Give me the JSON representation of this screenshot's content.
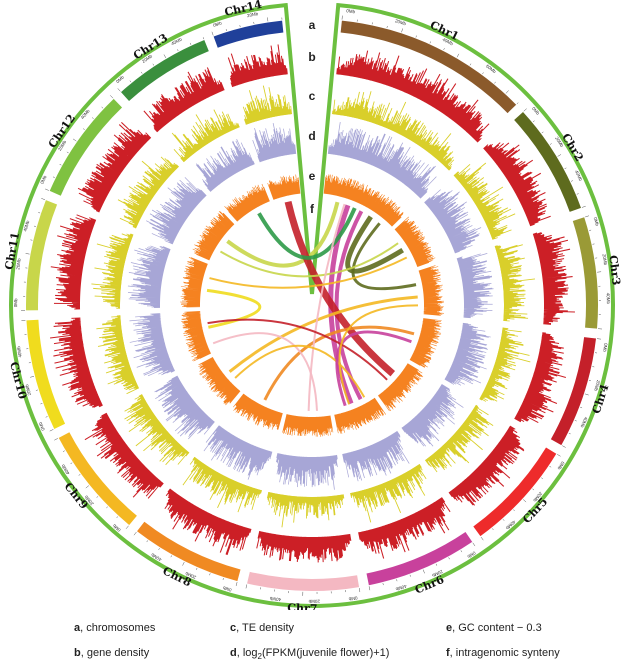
{
  "figure": {
    "colors": {
      "frame": "#6cbf3f",
      "gene_density": "#cc1f26",
      "te_density": "#d9cf2a",
      "expression": "#a7a6d6",
      "gc_content": "#f58220"
    },
    "chromosomes": [
      {
        "name": "Chr1",
        "length": 14,
        "color": "#8b5a2b",
        "ticks": [
          "0Mb",
          "20Mb",
          "40Mb",
          "60Mb"
        ]
      },
      {
        "name": "Chr2",
        "length": 8,
        "color": "#5e6b1e",
        "ticks": [
          "0Mb",
          "20Mb",
          "40Mb"
        ]
      },
      {
        "name": "Chr3",
        "length": 8,
        "color": "#9a9a36",
        "ticks": [
          "0Mb",
          "20Mb",
          "40Mb"
        ]
      },
      {
        "name": "Chr4",
        "length": 8,
        "color": "#c4202a",
        "ticks": [
          "0Mb",
          "20Mb",
          "40Mb"
        ]
      },
      {
        "name": "Chr5",
        "length": 8,
        "color": "#ee2b2b",
        "ticks": [
          "0Mb",
          "20Mb",
          "40Mb"
        ]
      },
      {
        "name": "Chr6",
        "length": 8,
        "color": "#c8419c",
        "ticks": [
          "0Mb",
          "20Mb",
          "40Mb"
        ]
      },
      {
        "name": "Chr7",
        "length": 8,
        "color": "#f4b8c2",
        "ticks": [
          "0Mb",
          "20Mb",
          "40Mb"
        ]
      },
      {
        "name": "Chr8",
        "length": 8,
        "color": "#f08a22",
        "ticks": [
          "0Mb",
          "20Mb",
          "40Mb"
        ]
      },
      {
        "name": "Chr9",
        "length": 8,
        "color": "#f4b822",
        "ticks": [
          "0Mb",
          "20Mb",
          "40Mb"
        ]
      },
      {
        "name": "Chr10",
        "length": 8,
        "color": "#f0dc1e",
        "ticks": [
          "0Mb",
          "20Mb",
          "40Mb"
        ]
      },
      {
        "name": "Chr11",
        "length": 8,
        "color": "#c8d64a",
        "ticks": [
          "0Mb",
          "20Mb",
          "40Mb"
        ]
      },
      {
        "name": "Chr12",
        "length": 8,
        "color": "#7fc241",
        "ticks": [
          "0Mb",
          "20Mb",
          "40Mb"
        ]
      },
      {
        "name": "Chr13",
        "length": 7,
        "color": "#3a8f3d",
        "ticks": [
          "0Mb",
          "20Mb",
          "40Mb"
        ]
      },
      {
        "name": "Chr14",
        "length": 5,
        "color": "#20409a",
        "ticks": [
          "0Mb",
          "20Mb"
        ]
      }
    ],
    "track_letters": [
      "a",
      "b",
      "c",
      "d",
      "e",
      "f"
    ],
    "links": [
      {
        "from": [
          1,
          0.35
        ],
        "to": [
          6,
          0.55
        ],
        "color": "#c8419c",
        "width": 5
      },
      {
        "from": [
          1,
          0.55
        ],
        "to": [
          6,
          0.3
        ],
        "color": "#c8419c",
        "width": 4
      },
      {
        "from": [
          1,
          0.2
        ],
        "to": [
          12,
          0.6
        ],
        "color": "#c8d64a",
        "width": 4
      },
      {
        "from": [
          1,
          0.7
        ],
        "to": [
          2,
          0.5
        ],
        "color": "#5e6b1e",
        "width": 5
      },
      {
        "from": [
          1,
          0.85
        ],
        "to": [
          3,
          0.3
        ],
        "color": "#5e6b1e",
        "width": 3
      },
      {
        "from": [
          14,
          0.5
        ],
        "to": [
          5,
          0.4
        ],
        "color": "#c4202a",
        "width": 7
      },
      {
        "from": [
          13,
          0.6
        ],
        "to": [
          1,
          0.45
        ],
        "color": "#2e9a48",
        "width": 4
      },
      {
        "from": [
          12,
          0.3
        ],
        "to": [
          2,
          0.3
        ],
        "color": "#c8d64a",
        "width": 2
      },
      {
        "from": [
          10,
          0.6
        ],
        "to": [
          11,
          0.4
        ],
        "color": "#f0dc1e",
        "width": 3
      },
      {
        "from": [
          9,
          0.5
        ],
        "to": [
          3,
          0.6
        ],
        "color": "#f4b822",
        "width": 3
      },
      {
        "from": [
          8,
          0.5
        ],
        "to": [
          4,
          0.4
        ],
        "color": "#f08a22",
        "width": 3
      },
      {
        "from": [
          7,
          0.5
        ],
        "to": [
          1,
          0.3
        ],
        "color": "#f4b8c2",
        "width": 2
      },
      {
        "from": [
          7,
          0.3
        ],
        "to": [
          10,
          0.2
        ],
        "color": "#f4b8c2",
        "width": 2
      },
      {
        "from": [
          9,
          0.3
        ],
        "to": [
          6,
          0.2
        ],
        "color": "#f4b822",
        "width": 2
      },
      {
        "from": [
          4,
          0.6
        ],
        "to": [
          6,
          0.7
        ],
        "color": "#c8419c",
        "width": 3
      },
      {
        "from": [
          5,
          0.6
        ],
        "to": [
          10,
          0.7
        ],
        "color": "#c4202a",
        "width": 2
      },
      {
        "from": [
          11,
          0.7
        ],
        "to": [
          2,
          0.7
        ],
        "color": "#f4b822",
        "width": 2
      },
      {
        "from": [
          3,
          0.8
        ],
        "to": [
          6,
          0.6
        ],
        "color": "#f4b822",
        "width": 2
      }
    ]
  },
  "legend": {
    "a": {
      "key": "a",
      "text": ", chromosomes"
    },
    "b": {
      "key": "b",
      "text": ", gene density"
    },
    "c": {
      "key": "c",
      "text": ", TE density"
    },
    "d": {
      "key": "d",
      "pre": ", log",
      "sub": "2",
      "post": "(FPKM(juvenile flower)+1)"
    },
    "e": {
      "key": "e",
      "text": ", GC content − 0.3"
    },
    "f": {
      "key": "f",
      "text": ", intragenomic synteny"
    }
  }
}
